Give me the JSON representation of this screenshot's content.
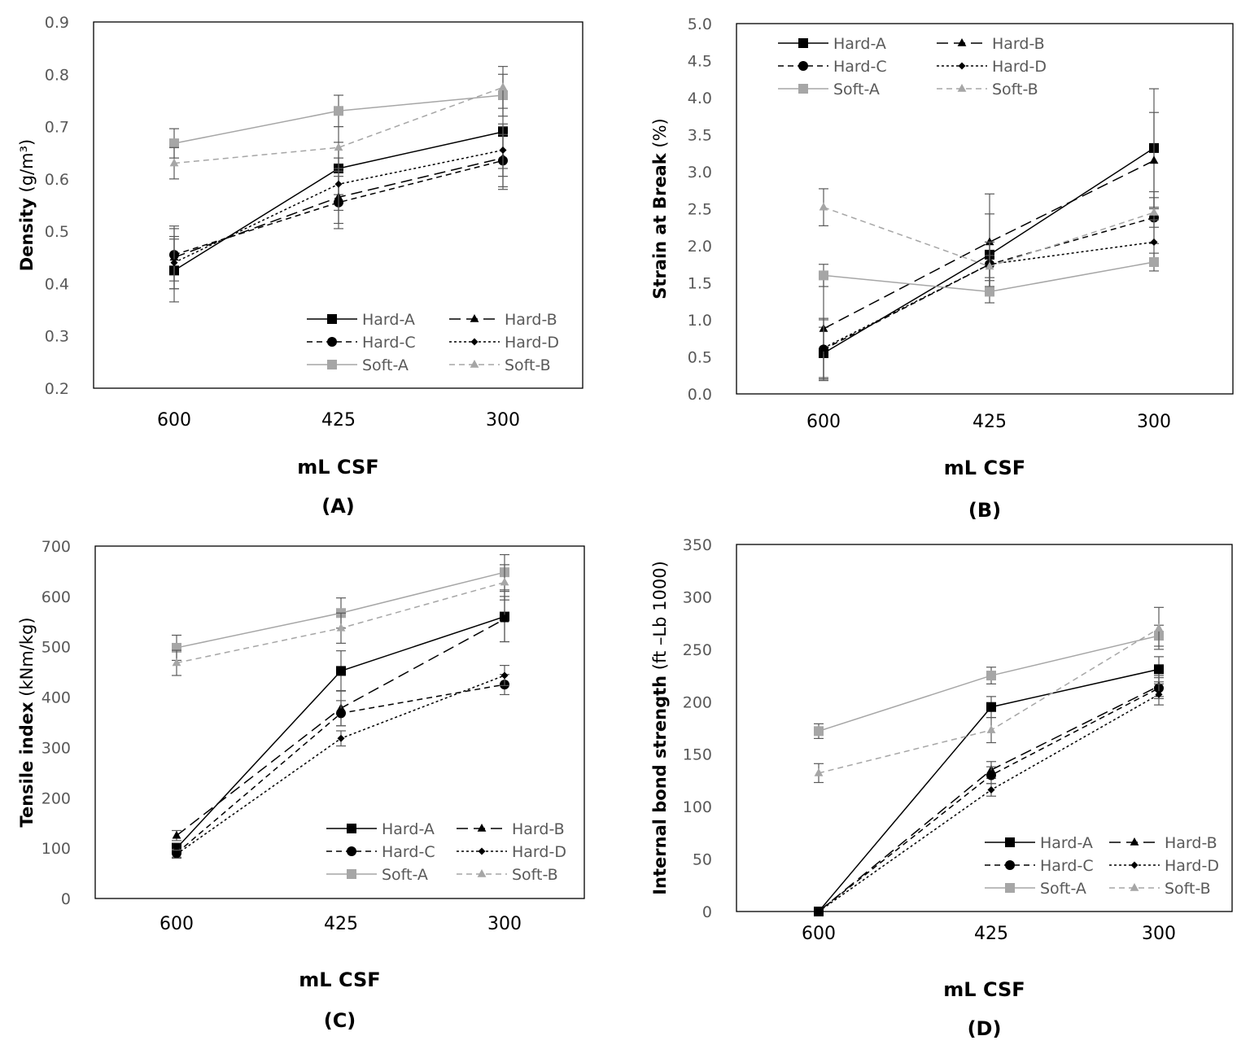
{
  "styles": {
    "Hard-A": {
      "color": "#000000",
      "dash": "",
      "marker": "square"
    },
    "Hard-B": {
      "color": "#000000",
      "dash": "14,7",
      "marker": "triangle"
    },
    "Hard-C": {
      "color": "#000000",
      "dash": "7,5",
      "marker": "circle"
    },
    "Hard-D": {
      "color": "#000000",
      "dash": "3,3",
      "marker": "diamond"
    },
    "Soft-A": {
      "color": "#a6a6a6",
      "dash": "",
      "marker": "square"
    },
    "Soft-B": {
      "color": "#a6a6a6",
      "dash": "7,5",
      "marker": "triangle"
    }
  },
  "chart_data": [
    {
      "type": "line",
      "panel_label": "(A)",
      "ylabel_bold": "Density",
      "ylabel_rest": " (g/m³)",
      "xlabel": "mL  CSF",
      "categories": [
        "600",
        "425",
        "300"
      ],
      "ylim": [
        0.2,
        0.9
      ],
      "yticks": [
        "0.2",
        "0.3",
        "0.4",
        "0.5",
        "0.6",
        "0.7",
        "0.8",
        "0.9"
      ],
      "legend_position": "bottom-right",
      "series": [
        {
          "name": "Hard-A",
          "values": [
            0.425,
            0.62,
            0.69
          ],
          "errors": [
            0.06,
            0.05,
            0.07
          ]
        },
        {
          "name": "Hard-B",
          "values": [
            0.45,
            0.565,
            0.64
          ],
          "errors": [
            0.06,
            0.05,
            0.06
          ]
        },
        {
          "name": "Hard-C",
          "values": [
            0.455,
            0.555,
            0.635
          ],
          "errors": [
            0.05,
            0.05,
            0.05
          ]
        },
        {
          "name": "Hard-D",
          "values": [
            0.44,
            0.59,
            0.655
          ],
          "errors": [
            0.05,
            0.05,
            0.05
          ]
        },
        {
          "name": "Soft-A",
          "values": [
            0.668,
            0.73,
            0.76
          ],
          "errors": [
            0.028,
            0.03,
            0.04
          ]
        },
        {
          "name": "Soft-B",
          "values": [
            0.63,
            0.66,
            0.775
          ],
          "errors": [
            0.03,
            0.04,
            0.04
          ]
        }
      ]
    },
    {
      "type": "line",
      "panel_label": "(B)",
      "ylabel_bold": "Strain at Break",
      "ylabel_rest": " (%)",
      "xlabel": "mL  CSF",
      "categories": [
        "600",
        "425",
        "300"
      ],
      "ylim": [
        0,
        5
      ],
      "yticks": [
        "0.0",
        "0.5",
        "1.0",
        "1.5",
        "2.0",
        "2.5",
        "3.0",
        "3.5",
        "4.0",
        "4.5",
        "5.0"
      ],
      "legend_position": "top-left",
      "series": [
        {
          "name": "Hard-A",
          "values": [
            0.55,
            1.88,
            3.32
          ],
          "errors": [
            0.35,
            0.55,
            0.8
          ]
        },
        {
          "name": "Hard-B",
          "values": [
            0.88,
            2.05,
            3.15
          ],
          "errors": [
            0.7,
            0.65,
            0.65
          ]
        },
        {
          "name": "Hard-C",
          "values": [
            0.6,
            1.75,
            2.38
          ],
          "errors": [
            0.4,
            0.3,
            0.35
          ]
        },
        {
          "name": "Hard-D",
          "values": [
            0.62,
            1.75,
            2.05
          ],
          "errors": [
            0.4,
            0.3,
            0.3
          ]
        },
        {
          "name": "Soft-A",
          "values": [
            1.6,
            1.38,
            1.78
          ],
          "errors": [
            0.15,
            0.15,
            0.12
          ]
        },
        {
          "name": "Soft-B",
          "values": [
            2.52,
            1.72,
            2.45
          ],
          "errors": [
            0.25,
            0.15,
            0.2
          ]
        }
      ]
    },
    {
      "type": "line",
      "panel_label": "(C)",
      "ylabel_bold": "Tensile index",
      "ylabel_rest": " (kNm/kg)",
      "xlabel": "mL  CSF",
      "categories": [
        "600",
        "425",
        "300"
      ],
      "ylim": [
        0,
        700
      ],
      "yticks": [
        "0",
        "100",
        "200",
        "300",
        "400",
        "500",
        "600",
        "700"
      ],
      "legend_position": "bottom-right",
      "series": [
        {
          "name": "Hard-A",
          "values": [
            100,
            452,
            560
          ],
          "errors": [
            10,
            40,
            50
          ]
        },
        {
          "name": "Hard-B",
          "values": [
            125,
            378,
            555
          ],
          "errors": [
            10,
            35,
            45
          ]
        },
        {
          "name": "Hard-C",
          "values": [
            90,
            368,
            425
          ],
          "errors": [
            8,
            25,
            20
          ]
        },
        {
          "name": "Hard-D",
          "values": [
            88,
            318,
            443
          ],
          "errors": [
            8,
            15,
            20
          ]
        },
        {
          "name": "Soft-A",
          "values": [
            498,
            567,
            648
          ],
          "errors": [
            25,
            30,
            35
          ]
        },
        {
          "name": "Soft-B",
          "values": [
            468,
            537,
            628
          ],
          "errors": [
            25,
            30,
            35
          ]
        }
      ]
    },
    {
      "type": "line",
      "panel_label": "(D)",
      "ylabel_bold": "Internal bond strength",
      "ylabel_rest": " (ft –Lb 1000)",
      "xlabel": "mL  CSF",
      "categories": [
        "600",
        "425",
        "300"
      ],
      "ylim": [
        0,
        350
      ],
      "yticks": [
        "0",
        "50",
        "100",
        "150",
        "200",
        "250",
        "300",
        "350"
      ],
      "legend_position": "bottom-right",
      "series": [
        {
          "name": "Hard-A",
          "values": [
            0,
            195,
            231
          ],
          "errors": [
            0,
            10,
            12
          ]
        },
        {
          "name": "Hard-B",
          "values": [
            0,
            135,
            215
          ],
          "errors": [
            0,
            8,
            10
          ]
        },
        {
          "name": "Hard-C",
          "values": [
            0,
            130,
            213
          ],
          "errors": [
            0,
            8,
            10
          ]
        },
        {
          "name": "Hard-D",
          "values": [
            0,
            116,
            207
          ],
          "errors": [
            0,
            6,
            10
          ]
        },
        {
          "name": "Soft-A",
          "values": [
            172,
            225,
            263
          ],
          "errors": [
            7,
            8,
            10
          ]
        },
        {
          "name": "Soft-B",
          "values": [
            132,
            173,
            270
          ],
          "errors": [
            9,
            12,
            20
          ]
        }
      ]
    }
  ]
}
